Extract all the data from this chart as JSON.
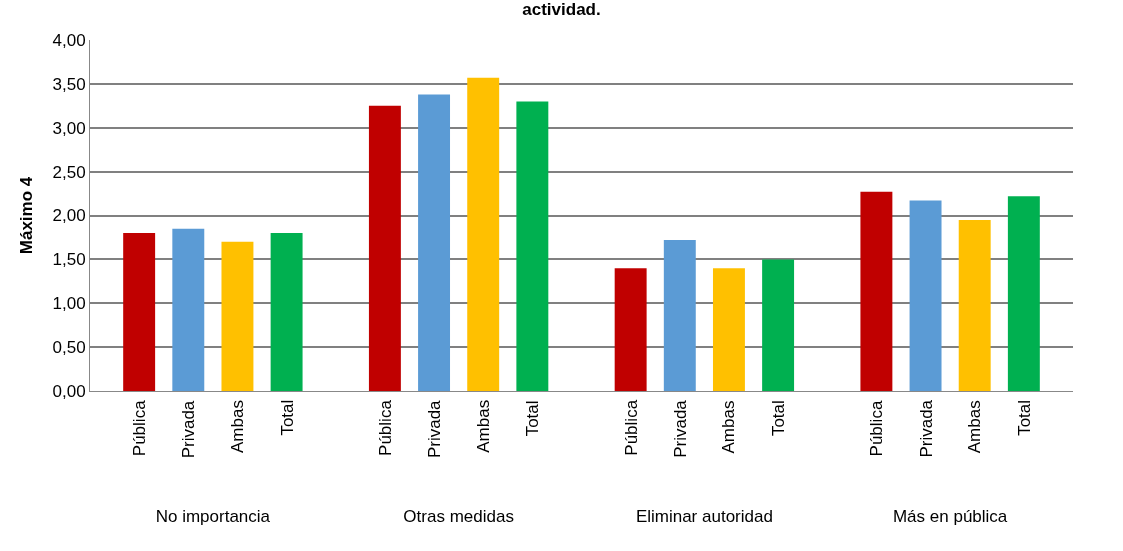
{
  "chart_data": {
    "type": "bar",
    "title": "actividad.",
    "ylabel": "Máximo 4",
    "categories": [
      "No importancia",
      "Otras medidas",
      "Eliminar autoridad",
      "Más en pública"
    ],
    "series": [
      {
        "name": "Pública",
        "color": "#c00000",
        "values": [
          1.8,
          3.25,
          1.4,
          2.27
        ]
      },
      {
        "name": "Privada",
        "color": "#5b9bd5",
        "values": [
          1.85,
          3.38,
          1.72,
          2.17
        ]
      },
      {
        "name": "Ambas",
        "color": "#ffc000",
        "values": [
          1.7,
          3.57,
          1.4,
          1.95
        ]
      },
      {
        "name": "Total",
        "color": "#00b050",
        "values": [
          1.8,
          3.3,
          1.5,
          2.22
        ]
      }
    ],
    "ylim": [
      0,
      4
    ],
    "yticks": [
      {
        "value": 0,
        "label": "0,00"
      },
      {
        "value": 0.5,
        "label": "0,50"
      },
      {
        "value": 1,
        "label": "1,00"
      },
      {
        "value": 1.5,
        "label": "1,50"
      },
      {
        "value": 2,
        "label": "2,00"
      },
      {
        "value": 2.5,
        "label": "2,50"
      },
      {
        "value": 3,
        "label": "3,00"
      },
      {
        "value": 3.5,
        "label": "3,50"
      },
      {
        "value": 4,
        "label": "4,00"
      }
    ],
    "grid": "y",
    "legend": false
  }
}
